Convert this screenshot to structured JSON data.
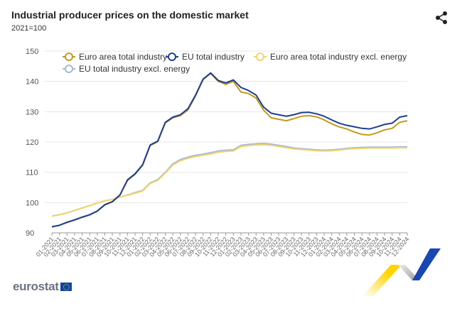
{
  "header": {
    "title": "Industrial producer prices on the domestic market",
    "subtitle": "2021=100",
    "share_icon": "share-icon"
  },
  "logo": {
    "text": "eurostat"
  },
  "chart_data": {
    "type": "line",
    "title": "Industrial producer prices on the domestic market",
    "subtitle": "2021=100",
    "xlabel": "",
    "ylabel": "",
    "ylim": [
      90,
      150
    ],
    "yticks": [
      90,
      100,
      110,
      120,
      130,
      140,
      150
    ],
    "grid": true,
    "legend_position": "top-left",
    "x": [
      "01-2021",
      "02-2021",
      "03-2021",
      "04-2021",
      "05-2021",
      "06-2021",
      "07-2021",
      "08-2021",
      "09-2021",
      "10-2021",
      "11-2021",
      "12-2021",
      "01-2022",
      "02-2022",
      "03-2022",
      "04-2022",
      "05-2022",
      "06-2022",
      "07-2022",
      "08-2022",
      "09-2022",
      "10-2022",
      "11-2022",
      "12-2022",
      "01-2023",
      "02-2023",
      "03-2023",
      "04-2023",
      "05-2023",
      "06-2023",
      "07-2023",
      "08-2023",
      "09-2023",
      "10-2023",
      "11-2023",
      "12-2023",
      "01-2024",
      "02-2024",
      "03-2024",
      "04-2024",
      "05-2024",
      "06-2024",
      "07-2024",
      "08-2024",
      "09-2024",
      "10-2024",
      "11-2024",
      "12-2024"
    ],
    "series": [
      {
        "name": "Euro area total industry",
        "color": "#c49a1c",
        "values": [
          92,
          92.5,
          93.4,
          94.2,
          95.1,
          95.9,
          97.1,
          99.2,
          100.2,
          102.4,
          107.3,
          109.3,
          112.3,
          118.8,
          120.1,
          126.3,
          128,
          128.7,
          130.6,
          135.2,
          140.6,
          142.6,
          140,
          139,
          140,
          136.5,
          136,
          134.5,
          130.5,
          128,
          127.5,
          127,
          127.7,
          128.5,
          128.7,
          128.3,
          127.3,
          126,
          125,
          124.3,
          123.3,
          122.5,
          122.3,
          123,
          124,
          124.5,
          126.5,
          127
        ]
      },
      {
        "name": "EU total industry",
        "color": "#1c3f94",
        "values": [
          92,
          92.5,
          93.5,
          94.3,
          95.2,
          96,
          97.2,
          99.3,
          100.3,
          102.5,
          107.5,
          109.5,
          112.5,
          119,
          120.3,
          126.5,
          128.2,
          129,
          131,
          135.5,
          140.8,
          142.8,
          140.3,
          139.5,
          140.5,
          138,
          137,
          135.5,
          131.5,
          129.5,
          129,
          128.5,
          129,
          129.7,
          129.8,
          129.3,
          128.5,
          127.3,
          126.2,
          125.5,
          125,
          124.5,
          124.3,
          125,
          125.8,
          126.2,
          128.2,
          128.7
        ]
      },
      {
        "name": "Euro area total industry excl. energy",
        "color": "#f0d66a",
        "values": [
          95.5,
          96,
          96.6,
          97.4,
          98.2,
          99,
          99.8,
          100.6,
          101,
          101.8,
          102.4,
          103.1,
          103.8,
          106.3,
          107.3,
          109.7,
          112.4,
          113.8,
          114.6,
          115.2,
          115.6,
          116,
          116.6,
          116.9,
          117,
          118.5,
          118.8,
          119,
          119.1,
          118.9,
          118.5,
          118.1,
          117.7,
          117.5,
          117.3,
          117.1,
          117,
          117.1,
          117.3,
          117.6,
          117.8,
          117.9,
          118,
          118,
          118,
          118,
          118.1,
          118.1
        ]
      },
      {
        "name": "EU total industry excl. energy",
        "color": "#a8b9d9",
        "values": [
          95.5,
          96,
          96.6,
          97.4,
          98.2,
          99,
          99.8,
          100.6,
          101,
          101.8,
          102.5,
          103.3,
          104,
          106.5,
          107.6,
          110,
          112.8,
          114.2,
          115,
          115.6,
          116,
          116.5,
          117,
          117.3,
          117.4,
          118.9,
          119.2,
          119.4,
          119.5,
          119.3,
          118.9,
          118.5,
          118,
          117.8,
          117.6,
          117.4,
          117.3,
          117.4,
          117.6,
          117.9,
          118.1,
          118.2,
          118.3,
          118.3,
          118.3,
          118.3,
          118.4,
          118.4
        ]
      }
    ]
  }
}
